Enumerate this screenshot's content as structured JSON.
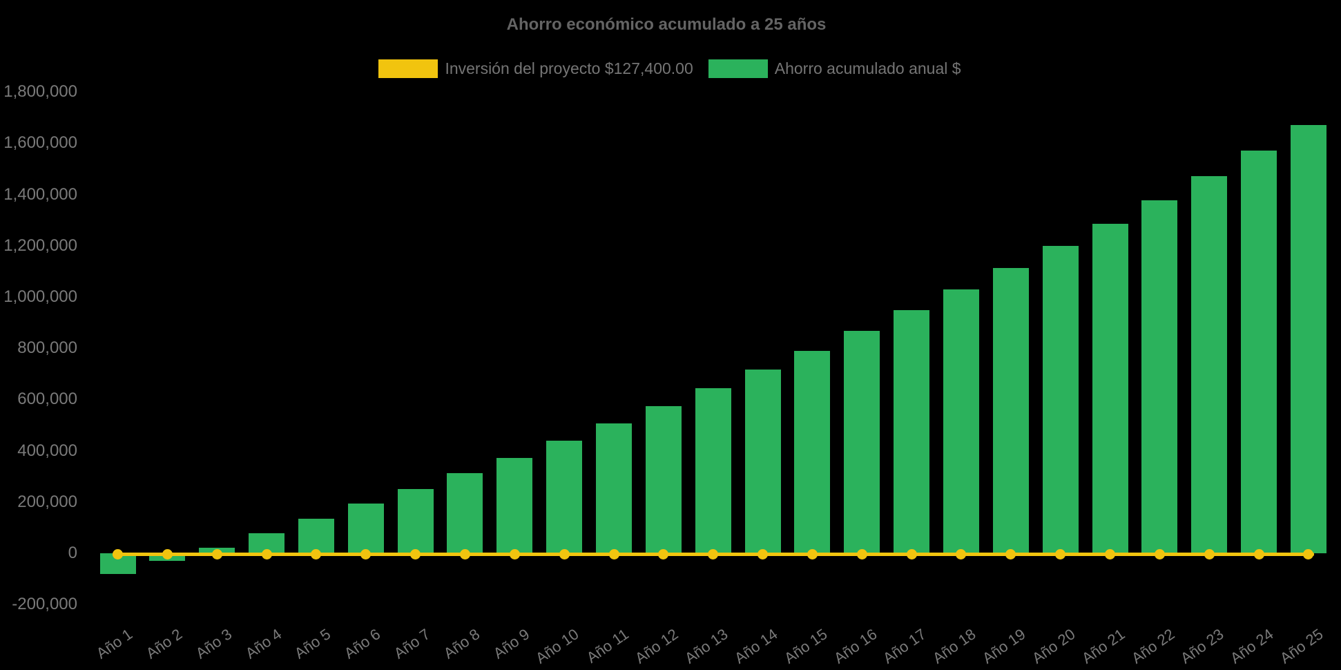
{
  "chart": {
    "title": "Ahorro económico acumulado a 25 años",
    "colors": {
      "background": "#000000",
      "bar_green": "#2bb25c",
      "line_yellow": "#f1c40f",
      "title_text": "#646464",
      "label_text": "#7a7a7a"
    }
  },
  "chart_data": {
    "type": "bar",
    "title": "Ahorro económico acumulado a 25 años",
    "legend_position": "top",
    "grid": false,
    "categories": [
      "Año 1",
      "Año 2",
      "Año 3",
      "Año 4",
      "Año 5",
      "Año 6",
      "Año 7",
      "Año 8",
      "Año 9",
      "Año 10",
      "Año 11",
      "Año 12",
      "Año 13",
      "Año 14",
      "Año 15",
      "Año 16",
      "Año 17",
      "Año 18",
      "Año 19",
      "Año 20",
      "Año 21",
      "Año 22",
      "Año 23",
      "Año 24",
      "Año 25"
    ],
    "series": [
      {
        "name": "Inversión del proyecto $127,400.00",
        "type": "line",
        "color": "#f1c40f",
        "investment_amount": "$127,400.00",
        "values": [
          0,
          0,
          0,
          0,
          0,
          0,
          0,
          0,
          0,
          0,
          0,
          0,
          0,
          0,
          0,
          0,
          0,
          0,
          0,
          0,
          0,
          0,
          0,
          0,
          0
        ]
      },
      {
        "name": "Ahorro acumulado anual $",
        "type": "bar",
        "color": "#2bb25c",
        "values": [
          -80000,
          -29000,
          22000,
          77000,
          135000,
          194000,
          251000,
          312000,
          372000,
          439000,
          506000,
          574000,
          644000,
          718000,
          791000,
          868000,
          948000,
          1029000,
          1112000,
          1199000,
          1287000,
          1377000,
          1473000,
          1571000,
          1670000
        ]
      }
    ],
    "ylim": [
      -200000,
      1800000
    ],
    "yticks": [
      {
        "value": -200000,
        "label": "-200,000"
      },
      {
        "value": 0,
        "label": "0"
      },
      {
        "value": 200000,
        "label": "200,000"
      },
      {
        "value": 400000,
        "label": "400,000"
      },
      {
        "value": 600000,
        "label": "600,000"
      },
      {
        "value": 800000,
        "label": "800,000"
      },
      {
        "value": 1000000,
        "label": "1,000,000"
      },
      {
        "value": 1200000,
        "label": "1,200,000"
      },
      {
        "value": 1400000,
        "label": "1,400,000"
      },
      {
        "value": 1600000,
        "label": "1,600,000"
      },
      {
        "value": 1800000,
        "label": "1,800,000"
      }
    ]
  }
}
